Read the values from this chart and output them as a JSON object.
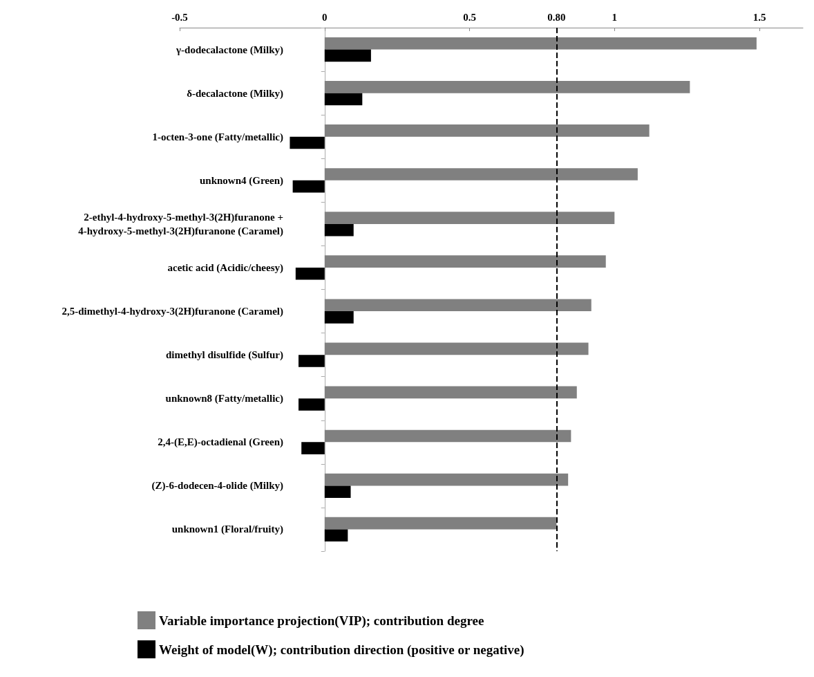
{
  "chart_data": {
    "type": "bar",
    "orientation": "horizontal",
    "categories": [
      "γ-dodecalactone (Milky)",
      "δ-decalactone (Milky)",
      "1-octen-3-one (Fatty/metallic)",
      "unknown4 (Green)",
      "2-ethyl-4-hydroxy-5-methyl-3(2H)furanone +\n4-hydroxy-5-methyl-3(2H)furanone (Caramel)",
      "acetic acid (Acidic/cheesy)",
      "2,5-dimethyl-4-hydroxy-3(2H)furanone (Caramel)",
      "dimethyl disulfide (Sulfur)",
      "unknown8 (Fatty/metallic)",
      "2,4-(E,E)-octadienal (Green)",
      "(Z)-6-dodecen-4-olide (Milky)",
      "unknown1 (Floral/fruity)"
    ],
    "series": [
      {
        "name": "Variable importance projection(VIP); contribution degree",
        "color": "#808080",
        "values": [
          1.49,
          1.26,
          1.12,
          1.08,
          1.0,
          0.97,
          0.92,
          0.91,
          0.87,
          0.85,
          0.84,
          0.8
        ]
      },
      {
        "name": "Weight of model(W); contribution direction (positive or negative)",
        "color": "#000000",
        "values": [
          0.16,
          0.13,
          -0.12,
          -0.11,
          0.1,
          -0.1,
          0.1,
          -0.09,
          -0.09,
          -0.08,
          0.09,
          0.08
        ]
      }
    ],
    "xlim": [
      -0.5,
      1.65
    ],
    "xticks": [
      -0.5,
      0,
      0.5,
      1,
      1.5
    ],
    "ref_lines": [
      {
        "axis": "x",
        "value": 0.8,
        "label": "0.80",
        "color": "#000000",
        "line_style": "dashed"
      }
    ],
    "legend": "bottom left"
  }
}
